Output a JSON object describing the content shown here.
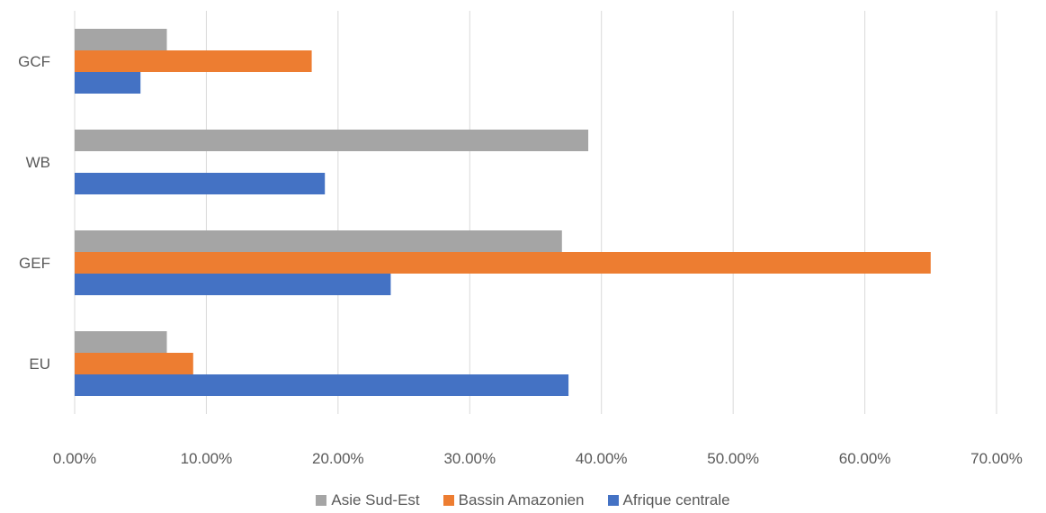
{
  "chart_data": {
    "type": "bar",
    "orientation": "horizontal",
    "categories": [
      "GCF",
      "WB",
      "GEF",
      "EU"
    ],
    "series": [
      {
        "name": "Asie Sud-Est",
        "color": "#A5A5A5",
        "values": [
          0.07,
          0.39,
          0.37,
          0.07
        ]
      },
      {
        "name": "Bassin Amazonien",
        "color": "#ED7D31",
        "values": [
          0.18,
          0,
          0.65,
          0.09
        ]
      },
      {
        "name": "Afrique centrale",
        "color": "#4472C4",
        "values": [
          0.05,
          0.19,
          0.24,
          0.375
        ]
      }
    ],
    "xlim": [
      0,
      0.7
    ],
    "x_ticks": [
      0,
      0.1,
      0.2,
      0.3,
      0.4,
      0.5,
      0.6,
      0.7
    ],
    "x_tick_labels": [
      "0.00%",
      "10.00%",
      "20.00%",
      "30.00%",
      "40.00%",
      "50.00%",
      "60.00%",
      "70.00%"
    ],
    "grid": true,
    "legend_position": "bottom"
  }
}
